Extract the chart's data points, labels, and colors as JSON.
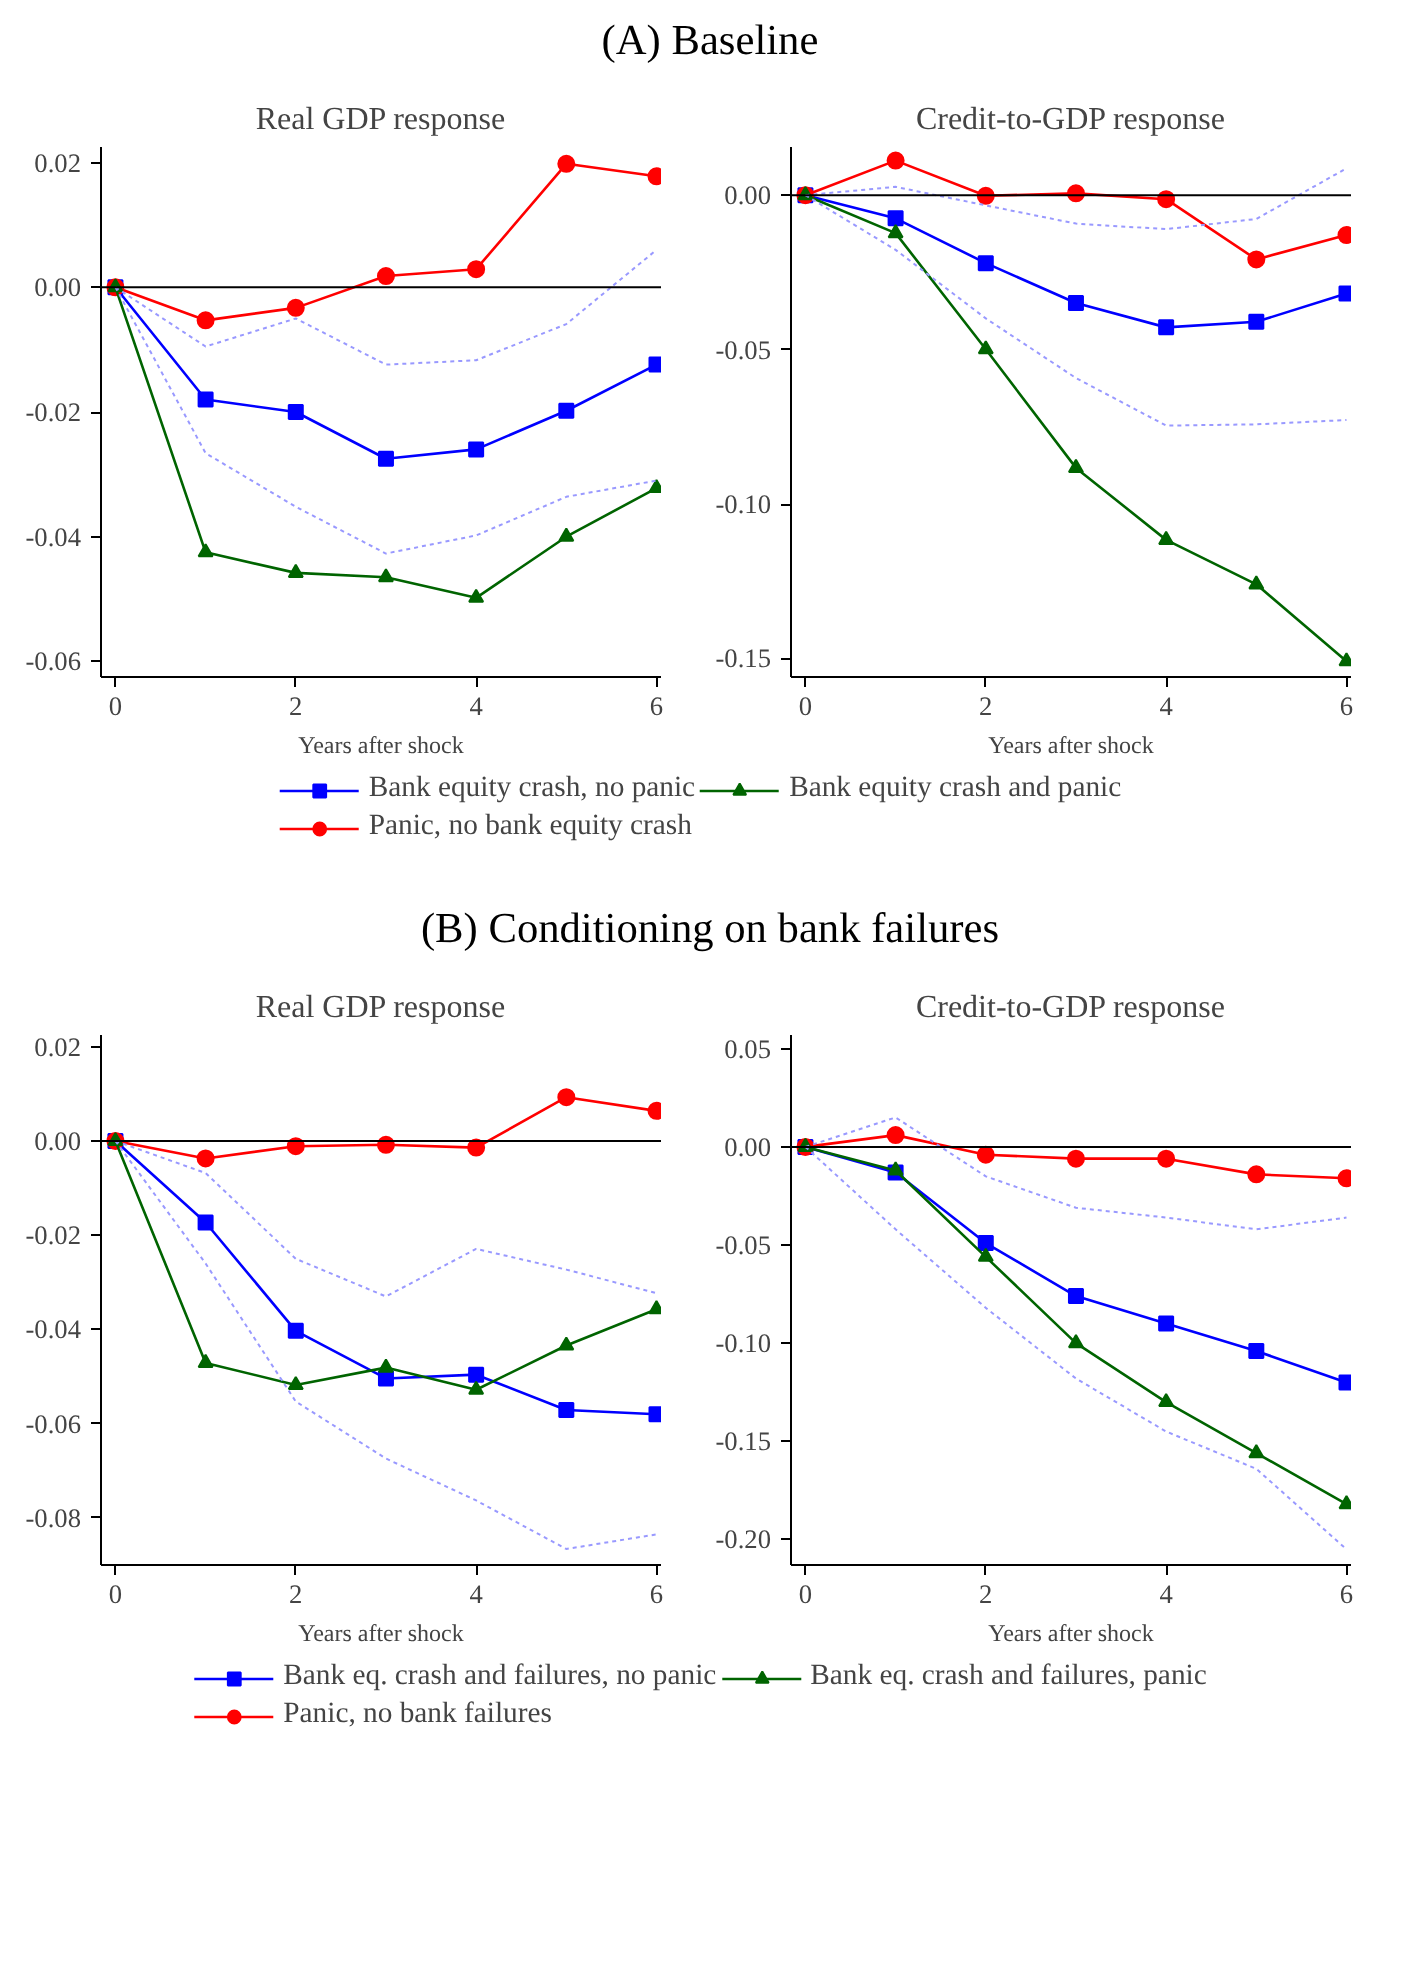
{
  "chart_data": [
    {
      "type": "line",
      "title": "Real GDP response",
      "xlabel": "Years after shock",
      "annotations": [
        "(A) Baseline"
      ],
      "x": [
        0,
        1,
        2,
        3,
        4,
        5,
        6
      ],
      "xlim": [
        -0.16,
        6.05
      ],
      "xticks": [
        0,
        2,
        4,
        6
      ],
      "ylim": [
        -0.0625,
        0.0225
      ],
      "yticks": [
        {
          "value": -0.06,
          "label": "-0.06"
        },
        {
          "value": -0.04,
          "label": "-0.04"
        },
        {
          "value": -0.02,
          "label": "-0.02"
        },
        {
          "value": 0,
          "label": "0.00"
        },
        {
          "value": 0.02,
          "label": "0.02"
        }
      ],
      "grid": false,
      "legend": "bottom",
      "ref_lines": [
        {
          "axis": "y",
          "value": 0,
          "color": "#000000"
        }
      ],
      "series": [
        {
          "name": "Bank equity crash, no panic",
          "color": "#0000ff",
          "marker": "square",
          "values": [
            0,
            -0.018,
            -0.02,
            -0.0275,
            -0.026,
            -0.0198,
            -0.0124
          ]
        },
        {
          "name": "Panic, no bank equity crash",
          "color": "#ff0000",
          "marker": "circle",
          "values": [
            0,
            -0.0053,
            -0.0033,
            0.0018,
            0.0029,
            0.0198,
            0.0178
          ]
        },
        {
          "name": "Bank equity crash and panic",
          "color": "#006400",
          "marker": "triangle",
          "values": [
            0,
            -0.0425,
            -0.0458,
            -0.0465,
            -0.0498,
            -0.04,
            -0.0322
          ]
        },
        {
          "color": "#9999ff",
          "marker": "none",
          "line_style": "dotted",
          "values": [
            0,
            -0.0095,
            -0.005,
            -0.0124,
            -0.0117,
            -0.0059,
            0.006
          ]
        },
        {
          "color": "#9999ff",
          "marker": "none",
          "line_style": "dotted",
          "values": [
            0,
            -0.0266,
            -0.0352,
            -0.0427,
            -0.0398,
            -0.0336,
            -0.031
          ]
        }
      ]
    },
    {
      "type": "line",
      "title": "Credit-to-GDP response",
      "xlabel": "Years after shock",
      "x": [
        0,
        1,
        2,
        3,
        4,
        5,
        6
      ],
      "xlim": [
        -0.16,
        6.05
      ],
      "xticks": [
        0,
        2,
        4,
        6
      ],
      "ylim": [
        -0.156,
        0.0156
      ],
      "yticks": [
        {
          "value": -0.15,
          "label": "-0.15"
        },
        {
          "value": -0.1,
          "label": "-0.10"
        },
        {
          "value": -0.05,
          "label": "-0.05"
        },
        {
          "value": 0,
          "label": "0.00"
        }
      ],
      "grid": false,
      "ref_lines": [
        {
          "axis": "y",
          "value": 0,
          "color": "#000000"
        }
      ],
      "series": [
        {
          "color": "#0000ff",
          "marker": "square",
          "values": [
            0,
            -0.0075,
            -0.022,
            -0.0349,
            -0.0428,
            -0.041,
            -0.0318
          ]
        },
        {
          "color": "#ff0000",
          "marker": "circle",
          "values": [
            0,
            0.0112,
            -0.0002,
            0.0006,
            -0.0013,
            -0.0208,
            -0.0129
          ]
        },
        {
          "color": "#006400",
          "marker": "triangle",
          "values": [
            0,
            -0.0123,
            -0.0499,
            -0.0883,
            -0.1116,
            -0.126,
            -0.1509
          ]
        },
        {
          "color": "#9999ff",
          "marker": "none",
          "line_style": "dotted",
          "values": [
            0,
            0.0027,
            -0.0033,
            -0.0092,
            -0.011,
            -0.0077,
            0.0087
          ]
        },
        {
          "color": "#9999ff",
          "marker": "none",
          "line_style": "dotted",
          "values": [
            0,
            -0.0177,
            -0.0399,
            -0.0592,
            -0.0746,
            -0.0742,
            -0.0728
          ]
        }
      ]
    },
    {
      "type": "line",
      "title": "Real GDP response",
      "xlabel": "Years after shock",
      "annotations": [
        "(B) Conditioning on bank failures"
      ],
      "x": [
        0,
        1,
        2,
        3,
        4,
        5,
        6
      ],
      "xlim": [
        -0.16,
        6.05
      ],
      "xticks": [
        0,
        2,
        4,
        6
      ],
      "ylim": [
        -0.09,
        0.0225
      ],
      "yticks": [
        {
          "value": -0.08,
          "label": "-0.08"
        },
        {
          "value": -0.06,
          "label": "-0.06"
        },
        {
          "value": -0.04,
          "label": "-0.04"
        },
        {
          "value": -0.02,
          "label": "-0.02"
        },
        {
          "value": 0,
          "label": "0.00"
        },
        {
          "value": 0.02,
          "label": "0.02"
        }
      ],
      "grid": false,
      "legend": "bottom",
      "ref_lines": [
        {
          "axis": "y",
          "value": 0,
          "color": "#000000"
        }
      ],
      "series": [
        {
          "name": "Bank eq. crash and failures, no panic",
          "color": "#0000ff",
          "marker": "square",
          "values": [
            0,
            -0.0173,
            -0.0403,
            -0.0504,
            -0.0496,
            -0.0571,
            -0.058
          ]
        },
        {
          "name": "Panic, no bank failures",
          "color": "#ff0000",
          "marker": "circle",
          "values": [
            0,
            -0.0037,
            -0.0011,
            -0.0008,
            -0.0014,
            0.0093,
            0.0064
          ]
        },
        {
          "name": "Bank eq. crash and failures, panic",
          "color": "#006400",
          "marker": "triangle",
          "values": [
            0,
            -0.0471,
            -0.0518,
            -0.0481,
            -0.0528,
            -0.0434,
            -0.0357
          ]
        },
        {
          "color": "#9999ff",
          "marker": "none",
          "line_style": "dotted",
          "values": [
            0,
            -0.0068,
            -0.025,
            -0.033,
            -0.0229,
            -0.0273,
            -0.0323
          ]
        },
        {
          "color": "#9999ff",
          "marker": "none",
          "line_style": "dotted",
          "values": [
            0,
            -0.026,
            -0.0553,
            -0.0674,
            -0.0763,
            -0.0866,
            -0.0835
          ]
        }
      ]
    },
    {
      "type": "line",
      "title": "Credit-to-GDP response",
      "xlabel": "Years after shock",
      "x": [
        0,
        1,
        2,
        3,
        4,
        5,
        6
      ],
      "xlim": [
        -0.16,
        6.05
      ],
      "xticks": [
        0,
        2,
        4,
        6
      ],
      "ylim": [
        -0.213,
        0.057
      ],
      "yticks": [
        {
          "value": -0.2,
          "label": "-0.20"
        },
        {
          "value": -0.15,
          "label": "-0.15"
        },
        {
          "value": -0.1,
          "label": "-0.10"
        },
        {
          "value": -0.05,
          "label": "-0.05"
        },
        {
          "value": 0,
          "label": "0.00"
        },
        {
          "value": 0.05,
          "label": "0.05"
        }
      ],
      "grid": false,
      "ref_lines": [
        {
          "axis": "y",
          "value": 0,
          "color": "#000000"
        }
      ],
      "series": [
        {
          "color": "#0000ff",
          "marker": "square",
          "values": [
            0,
            -0.013,
            -0.049,
            -0.076,
            -0.09,
            -0.104,
            -0.12
          ]
        },
        {
          "color": "#ff0000",
          "marker": "circle",
          "values": [
            0,
            0.006,
            -0.004,
            -0.006,
            -0.006,
            -0.014,
            -0.016
          ]
        },
        {
          "color": "#006400",
          "marker": "triangle",
          "values": [
            0,
            -0.012,
            -0.056,
            -0.1,
            -0.13,
            -0.156,
            -0.182
          ]
        },
        {
          "color": "#9999ff",
          "marker": "none",
          "line_style": "dotted",
          "values": [
            0,
            0.015,
            -0.015,
            -0.031,
            -0.036,
            -0.042,
            -0.036
          ]
        },
        {
          "color": "#9999ff",
          "marker": "none",
          "line_style": "dotted",
          "values": [
            0,
            -0.042,
            -0.082,
            -0.118,
            -0.145,
            -0.164,
            -0.205
          ]
        }
      ]
    }
  ]
}
